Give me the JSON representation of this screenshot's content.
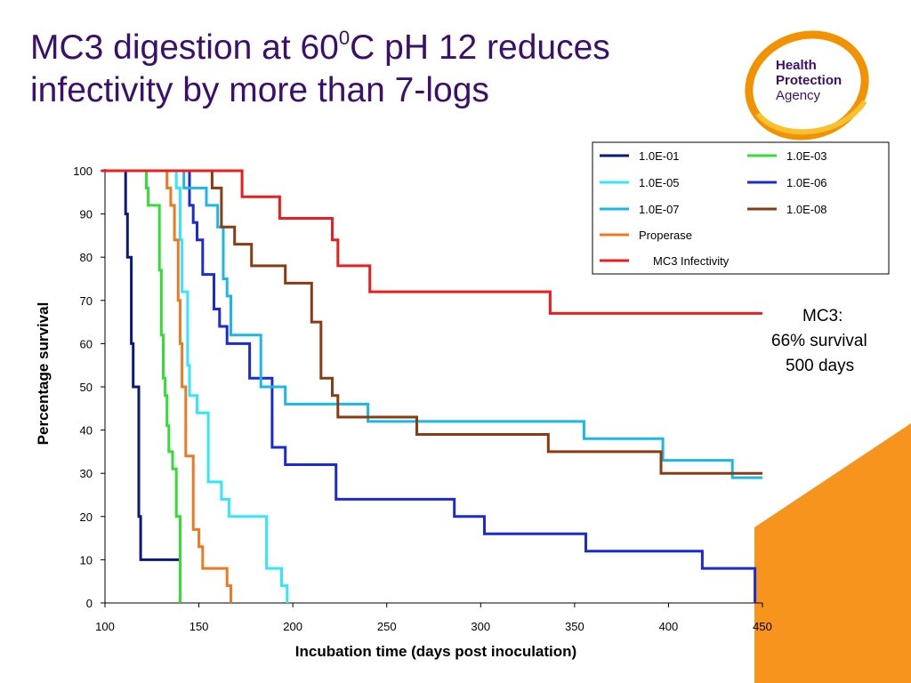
{
  "slide": {
    "title_part1": "MC3 digestion at 60",
    "title_superscript": "0",
    "title_part2": "C pH 12 reduces infectivity by more than 7-logs",
    "logo": {
      "line1": "Health",
      "line2": "Protection",
      "line3": "Agency"
    },
    "annotation": {
      "label": "MC3:",
      "survival": "66% survival",
      "duration": "500 days"
    }
  },
  "colors": {
    "title": "#3b0f6b",
    "logo_orange": "#f39200",
    "logo_yellow": "#fbc02d",
    "logo_text": "#3b0f6b",
    "corner_orange": "#f7941d"
  },
  "chart_data": {
    "type": "line",
    "step": true,
    "xlabel": "Incubation time (days post inoculation)",
    "ylabel": "Percentage survival",
    "xlim": [
      100,
      450
    ],
    "ylim": [
      0,
      100
    ],
    "xticks": [
      100,
      150,
      200,
      250,
      300,
      350,
      400,
      450
    ],
    "yticks": [
      0,
      10,
      20,
      30,
      40,
      50,
      60,
      70,
      80,
      90,
      100
    ],
    "legend_position": "top-right",
    "series": [
      {
        "name": "1.0E-01",
        "color": "#0b1a7a",
        "points": [
          [
            100,
            100
          ],
          [
            111,
            100
          ],
          [
            111,
            90
          ],
          [
            112,
            90
          ],
          [
            112,
            80
          ],
          [
            114,
            80
          ],
          [
            114,
            60
          ],
          [
            115,
            60
          ],
          [
            115,
            50
          ],
          [
            118,
            50
          ],
          [
            118,
            20
          ],
          [
            119,
            20
          ],
          [
            119,
            10
          ],
          [
            120,
            10
          ],
          [
            120,
            10
          ],
          [
            140,
            10
          ],
          [
            140,
            0
          ]
        ]
      },
      {
        "name": "1.0E-03",
        "color": "#33dd33",
        "points": [
          [
            100,
            100
          ],
          [
            122,
            100
          ],
          [
            122,
            96
          ],
          [
            123,
            96
          ],
          [
            123,
            92
          ],
          [
            129,
            92
          ],
          [
            129,
            77
          ],
          [
            130,
            77
          ],
          [
            130,
            62
          ],
          [
            131,
            62
          ],
          [
            131,
            52
          ],
          [
            132,
            52
          ],
          [
            132,
            48
          ],
          [
            133,
            48
          ],
          [
            133,
            41
          ],
          [
            134,
            41
          ],
          [
            134,
            35
          ],
          [
            136,
            35
          ],
          [
            136,
            31
          ],
          [
            138,
            31
          ],
          [
            138,
            20
          ],
          [
            140,
            20
          ],
          [
            140,
            0
          ]
        ]
      },
      {
        "name": "1.0E-05",
        "color": "#33e6ff",
        "points": [
          [
            100,
            100
          ],
          [
            138,
            100
          ],
          [
            138,
            96
          ],
          [
            140,
            96
          ],
          [
            140,
            84
          ],
          [
            141,
            84
          ],
          [
            141,
            72
          ],
          [
            144,
            72
          ],
          [
            144,
            55
          ],
          [
            145,
            55
          ],
          [
            145,
            48
          ],
          [
            149,
            48
          ],
          [
            149,
            44
          ],
          [
            155,
            44
          ],
          [
            155,
            28
          ],
          [
            162,
            28
          ],
          [
            162,
            24
          ],
          [
            166,
            24
          ],
          [
            166,
            20
          ],
          [
            186,
            20
          ],
          [
            186,
            8
          ],
          [
            194,
            8
          ],
          [
            194,
            4
          ],
          [
            197,
            4
          ],
          [
            197,
            0
          ]
        ]
      },
      {
        "name": "1.0E-06",
        "color": "#1a2ad9",
        "points": [
          [
            100,
            100
          ],
          [
            145,
            100
          ],
          [
            145,
            92
          ],
          [
            147,
            92
          ],
          [
            147,
            88
          ],
          [
            149,
            88
          ],
          [
            149,
            84
          ],
          [
            152,
            84
          ],
          [
            152,
            76
          ],
          [
            158,
            76
          ],
          [
            158,
            68
          ],
          [
            161,
            68
          ],
          [
            161,
            64
          ],
          [
            165,
            64
          ],
          [
            165,
            60
          ],
          [
            177,
            60
          ],
          [
            177,
            52
          ],
          [
            189,
            52
          ],
          [
            189,
            36
          ],
          [
            196,
            36
          ],
          [
            196,
            32
          ],
          [
            204,
            32
          ],
          [
            204,
            32
          ],
          [
            223,
            32
          ],
          [
            223,
            24
          ],
          [
            236,
            24
          ],
          [
            236,
            24
          ],
          [
            286,
            24
          ],
          [
            286,
            20
          ],
          [
            302,
            20
          ],
          [
            302,
            16
          ],
          [
            356,
            16
          ],
          [
            356,
            12
          ],
          [
            398,
            12
          ],
          [
            398,
            12
          ],
          [
            418,
            12
          ],
          [
            418,
            8
          ],
          [
            446,
            8
          ],
          [
            446,
            0
          ]
        ]
      },
      {
        "name": "1.0E-07",
        "color": "#1ab8e6",
        "points": [
          [
            100,
            100
          ],
          [
            142,
            100
          ],
          [
            142,
            96
          ],
          [
            154,
            96
          ],
          [
            154,
            92
          ],
          [
            160,
            92
          ],
          [
            160,
            87
          ],
          [
            163,
            87
          ],
          [
            163,
            75
          ],
          [
            165,
            75
          ],
          [
            165,
            71
          ],
          [
            167,
            71
          ],
          [
            167,
            62
          ],
          [
            183,
            62
          ],
          [
            183,
            50
          ],
          [
            196,
            50
          ],
          [
            196,
            46
          ],
          [
            240,
            46
          ],
          [
            240,
            42
          ],
          [
            355,
            42
          ],
          [
            355,
            38
          ],
          [
            397,
            38
          ],
          [
            397,
            33
          ],
          [
            434,
            33
          ],
          [
            434,
            29
          ],
          [
            450,
            29
          ]
        ]
      },
      {
        "name": "1.0E-08",
        "color": "#8b3a12",
        "points": [
          [
            100,
            100
          ],
          [
            157,
            100
          ],
          [
            157,
            96
          ],
          [
            162,
            96
          ],
          [
            162,
            87
          ],
          [
            169,
            87
          ],
          [
            169,
            83
          ],
          [
            178,
            83
          ],
          [
            178,
            78
          ],
          [
            196,
            78
          ],
          [
            196,
            74
          ],
          [
            210,
            74
          ],
          [
            210,
            65
          ],
          [
            215,
            65
          ],
          [
            215,
            52
          ],
          [
            221,
            52
          ],
          [
            221,
            48
          ],
          [
            224,
            48
          ],
          [
            224,
            43
          ],
          [
            266,
            43
          ],
          [
            266,
            39
          ],
          [
            336,
            39
          ],
          [
            336,
            35
          ],
          [
            396,
            35
          ],
          [
            396,
            30
          ],
          [
            450,
            30
          ]
        ]
      },
      {
        "name": "Properase",
        "color": "#f07820",
        "points": [
          [
            100,
            100
          ],
          [
            133,
            100
          ],
          [
            133,
            96
          ],
          [
            135,
            96
          ],
          [
            135,
            92
          ],
          [
            137,
            92
          ],
          [
            137,
            84
          ],
          [
            139,
            84
          ],
          [
            139,
            70
          ],
          [
            140,
            70
          ],
          [
            140,
            60
          ],
          [
            141,
            60
          ],
          [
            141,
            50
          ],
          [
            143,
            50
          ],
          [
            143,
            34
          ],
          [
            147,
            34
          ],
          [
            147,
            17
          ],
          [
            150,
            17
          ],
          [
            150,
            13
          ],
          [
            152,
            13
          ],
          [
            152,
            8
          ],
          [
            165,
            8
          ],
          [
            165,
            4
          ],
          [
            167,
            4
          ],
          [
            167,
            0
          ]
        ]
      },
      {
        "name": "MC3 Infectivity",
        "color": "#ee1c1c",
        "points": [
          [
            98,
            100
          ],
          [
            173,
            100
          ],
          [
            173,
            94
          ],
          [
            193,
            94
          ],
          [
            193,
            89
          ],
          [
            221,
            89
          ],
          [
            221,
            84
          ],
          [
            224,
            84
          ],
          [
            224,
            78
          ],
          [
            241,
            78
          ],
          [
            241,
            72
          ],
          [
            337,
            72
          ],
          [
            337,
            67
          ],
          [
            450,
            67
          ]
        ]
      }
    ]
  }
}
